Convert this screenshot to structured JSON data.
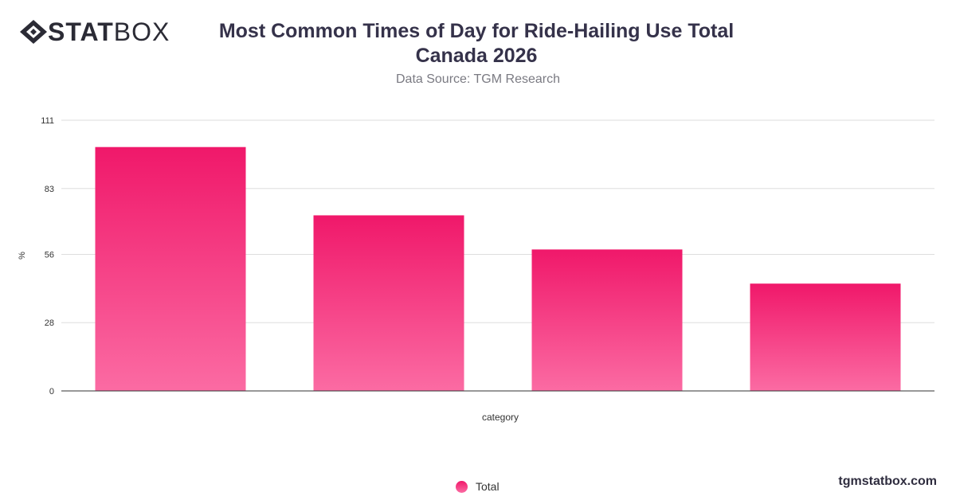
{
  "brand": {
    "logo_bold": "STAT",
    "logo_light": "BOX",
    "footer": "tgmstatbox.com"
  },
  "header": {
    "title": "Most Common Times of Day for Ride-Hailing Use Total Canada 2026",
    "subtitle": "Data Source: TGM Research"
  },
  "legend": {
    "label": "Total"
  },
  "colors": {
    "bar_top": "#f0186a",
    "bar_bottom": "#fb6ba3",
    "grid": "#dddddd",
    "axis": "#333333"
  },
  "chart_data": {
    "type": "bar",
    "title": "Most Common Times of Day for Ride-Hailing Use Total Canada 2026",
    "subtitle": "Data Source: TGM Research",
    "xlabel": "category",
    "ylabel": "%",
    "categories": [
      "",
      "",
      "",
      ""
    ],
    "series": [
      {
        "name": "Total",
        "values": [
          100,
          72,
          58,
          44
        ]
      }
    ],
    "ylim": [
      0,
      111
    ],
    "yticks": [
      "0",
      "28",
      "56",
      "83",
      "111"
    ],
    "grid": true,
    "legend_position": "bottom"
  }
}
